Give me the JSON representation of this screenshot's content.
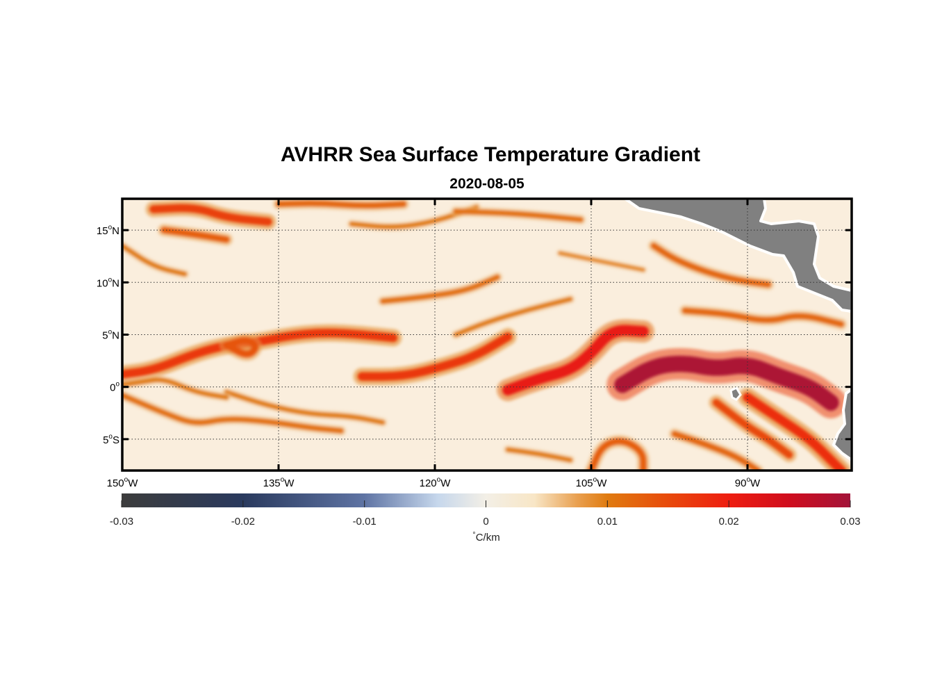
{
  "title": "AVHRR Sea Surface Temperature Gradient",
  "subtitle": "2020-08-05",
  "map": {
    "lon_range": [
      -150,
      -80
    ],
    "lat_range": [
      -8,
      18
    ],
    "grid": "dotted",
    "lon_ticks": [
      {
        "value": -150,
        "deg": "150",
        "hemi": "W"
      },
      {
        "value": -135,
        "deg": "135",
        "hemi": "W"
      },
      {
        "value": -120,
        "deg": "120",
        "hemi": "W"
      },
      {
        "value": -105,
        "deg": "105",
        "hemi": "W"
      },
      {
        "value": -90,
        "deg": "90",
        "hemi": "W"
      }
    ],
    "lat_ticks": [
      {
        "value": 15,
        "deg": "15",
        "hemi": "N"
      },
      {
        "value": 10,
        "deg": "10",
        "hemi": "N"
      },
      {
        "value": 5,
        "deg": "5",
        "hemi": "N"
      },
      {
        "value": 0,
        "deg": "0",
        "hemi": ""
      },
      {
        "value": -5,
        "deg": "5",
        "hemi": "S"
      }
    ],
    "colors": {
      "land": "#808080",
      "background": "#faeedd",
      "frame": "#000000"
    }
  },
  "colorbar": {
    "min": -0.03,
    "max": 0.03,
    "ticks": [
      "-0.03",
      "-0.02",
      "-0.01",
      "0",
      "0.01",
      "0.02",
      "0.03"
    ],
    "unit_symbol": "°",
    "unit_text": "C/km",
    "stops": [
      {
        "value": -0.03,
        "color": "#3c3c3c"
      },
      {
        "value": -0.02,
        "color": "#2a3a5e"
      },
      {
        "value": -0.01,
        "color": "#5f74a4"
      },
      {
        "value": -0.004,
        "color": "#c6d7ec"
      },
      {
        "value": 0.0,
        "color": "#f3efe6"
      },
      {
        "value": 0.004,
        "color": "#f8e6c6"
      },
      {
        "value": 0.0075,
        "color": "#e9a050"
      },
      {
        "value": 0.01,
        "color": "#e07b10"
      },
      {
        "value": 0.015,
        "color": "#e84a0c"
      },
      {
        "value": 0.02,
        "color": "#ee1d10"
      },
      {
        "value": 0.025,
        "color": "#cf0d1e"
      },
      {
        "value": 0.03,
        "color": "#a3143a"
      }
    ]
  },
  "fronts": [
    {
      "name": "equatorial-front-east",
      "value": 0.029,
      "points": [
        [
          -102,
          0.2
        ],
        [
          -99,
          2.0
        ],
        [
          -96,
          2.3
        ],
        [
          -93,
          1.7
        ],
        [
          -90,
          2.2
        ],
        [
          -87,
          1.0
        ],
        [
          -84,
          0.0
        ],
        [
          -82,
          -1.5
        ]
      ]
    },
    {
      "name": "equatorial-front-mid",
      "value": 0.021,
      "points": [
        [
          -113,
          -0.3
        ],
        [
          -110,
          0.8
        ],
        [
          -107,
          1.6
        ],
        [
          -105,
          3.2
        ],
        [
          -103,
          5.5
        ],
        [
          -100,
          5.3
        ]
      ]
    },
    {
      "name": "equatorial-front-center",
      "value": 0.017,
      "points": [
        [
          -127,
          1.0
        ],
        [
          -123,
          1.0
        ],
        [
          -119,
          2.0
        ],
        [
          -116,
          3.0
        ],
        [
          -113,
          4.8
        ]
      ]
    },
    {
      "name": "northern-band-west",
      "value": 0.017,
      "points": [
        [
          -150,
          1.2
        ],
        [
          -147,
          1.6
        ],
        [
          -143,
          3.2
        ],
        [
          -140,
          4.0
        ],
        [
          -137,
          4.3
        ],
        [
          -134,
          4.9
        ],
        [
          -131,
          5.2
        ],
        [
          -128,
          5.1
        ],
        [
          -124,
          4.7
        ]
      ]
    },
    {
      "name": "eddy-loop-west",
      "value": 0.014,
      "points": [
        [
          -140,
          4.0
        ],
        [
          -138,
          2.9
        ],
        [
          -137,
          3.8
        ],
        [
          -138,
          4.6
        ],
        [
          -140,
          4.0
        ]
      ]
    },
    {
      "name": "southern-filament-a",
      "value": 0.011,
      "points": [
        [
          -150,
          -0.8
        ],
        [
          -146,
          -2.5
        ],
        [
          -143,
          -3.6
        ],
        [
          -140,
          -3.0
        ],
        [
          -136,
          -3.3
        ],
        [
          -132,
          -3.9
        ],
        [
          -129,
          -4.2
        ]
      ]
    },
    {
      "name": "southern-filament-b",
      "value": 0.01,
      "points": [
        [
          -140,
          -0.5
        ],
        [
          -136,
          -1.8
        ],
        [
          -132,
          -2.6
        ],
        [
          -128,
          -2.8
        ],
        [
          -125,
          -3.4
        ]
      ]
    },
    {
      "name": "southern-filament-c",
      "value": 0.01,
      "points": [
        [
          -113,
          -6.0
        ],
        [
          -110,
          -6.4
        ],
        [
          -107,
          -7.0
        ]
      ]
    },
    {
      "name": "southern-loop-east",
      "value": 0.013,
      "points": [
        [
          -105,
          -8.0
        ],
        [
          -104,
          -5.6
        ],
        [
          -102,
          -5.0
        ],
        [
          -100,
          -6.2
        ],
        [
          -100,
          -8.0
        ]
      ]
    },
    {
      "name": "southern-filament-d",
      "value": 0.012,
      "points": [
        [
          -97,
          -4.5
        ],
        [
          -94,
          -5.5
        ],
        [
          -91,
          -6.7
        ],
        [
          -89,
          -8.0
        ]
      ]
    },
    {
      "name": "north-filament-a",
      "value": 0.016,
      "points": [
        [
          -147,
          17.0
        ],
        [
          -143,
          17.2
        ],
        [
          -140,
          16.2
        ],
        [
          -136,
          15.8
        ]
      ]
    },
    {
      "name": "north-filament-b",
      "value": 0.013,
      "points": [
        [
          -146,
          15.0
        ],
        [
          -143,
          14.6
        ],
        [
          -140,
          14.1
        ]
      ]
    },
    {
      "name": "north-filament-c",
      "value": 0.012,
      "points": [
        [
          -135,
          17.5
        ],
        [
          -131,
          17.6
        ],
        [
          -127,
          17.3
        ],
        [
          -123,
          17.5
        ]
      ]
    },
    {
      "name": "north-filament-d",
      "value": 0.01,
      "points": [
        [
          -128,
          15.6
        ],
        [
          -124,
          15.2
        ],
        [
          -120,
          15.8
        ],
        [
          -116,
          17.2
        ]
      ]
    },
    {
      "name": "north-filament-e",
      "value": 0.01,
      "points": [
        [
          -150,
          13.5
        ],
        [
          -147,
          11.5
        ],
        [
          -144,
          10.8
        ]
      ]
    },
    {
      "name": "mid-filament-a",
      "value": 0.011,
      "points": [
        [
          -125,
          8.2
        ],
        [
          -121,
          8.6
        ],
        [
          -117,
          9.2
        ],
        [
          -114,
          10.5
        ]
      ]
    },
    {
      "name": "mid-filament-b",
      "value": 0.01,
      "points": [
        [
          -118,
          5.0
        ],
        [
          -115,
          6.2
        ],
        [
          -111,
          7.4
        ],
        [
          -107,
          8.4
        ]
      ]
    },
    {
      "name": "mid-filament-c",
      "value": 0.012,
      "points": [
        [
          -96,
          7.3
        ],
        [
          -92,
          7.0
        ],
        [
          -88,
          6.2
        ],
        [
          -85,
          7.0
        ],
        [
          -81,
          6.0
        ]
      ]
    },
    {
      "name": "coastal-filament",
      "value": 0.012,
      "points": [
        [
          -99,
          13.5
        ],
        [
          -97,
          12.2
        ],
        [
          -94,
          11.0
        ],
        [
          -91,
          10.2
        ],
        [
          -88,
          9.8
        ]
      ]
    },
    {
      "name": "mid-filament-d",
      "value": 0.009,
      "points": [
        [
          -108,
          12.8
        ],
        [
          -104,
          12.0
        ],
        [
          -100,
          11.2
        ]
      ]
    },
    {
      "name": "north-filament-f",
      "value": 0.011,
      "points": [
        [
          -118,
          16.8
        ],
        [
          -112,
          16.6
        ],
        [
          -106,
          16.0
        ]
      ]
    },
    {
      "name": "west-wave",
      "value": 0.01,
      "points": [
        [
          -150,
          0.2
        ],
        [
          -148,
          0.5
        ],
        [
          -146,
          0.8
        ],
        [
          -143,
          -0.5
        ],
        [
          -140,
          -1.0
        ]
      ]
    },
    {
      "name": "southeast-arc",
      "value": 0.018,
      "points": [
        [
          -90,
          -1.0
        ],
        [
          -87,
          -3.0
        ],
        [
          -84,
          -5.0
        ],
        [
          -82,
          -7.0
        ],
        [
          -81,
          -8.0
        ]
      ]
    },
    {
      "name": "southeast-arc-b",
      "value": 0.015,
      "points": [
        [
          -93,
          -1.5
        ],
        [
          -90,
          -3.8
        ],
        [
          -88,
          -5.0
        ],
        [
          -86,
          -6.5
        ]
      ]
    }
  ]
}
